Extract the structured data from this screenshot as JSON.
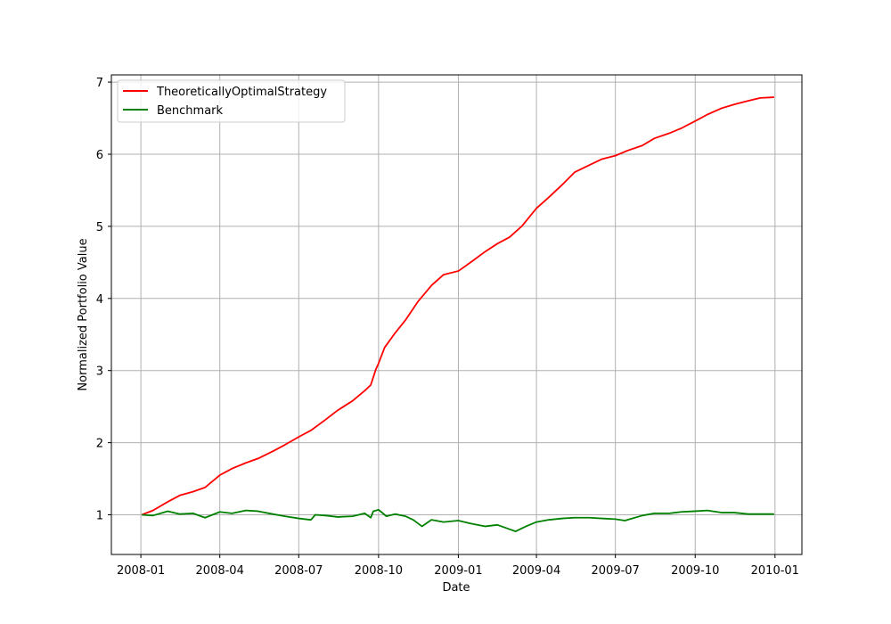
{
  "chart_data": {
    "type": "line",
    "xlabel": "Date",
    "ylabel": "Normalized Portfolio Value",
    "xlim": [
      "2007-11-28",
      "2010-02-01"
    ],
    "ylim": [
      0.45,
      7.1
    ],
    "grid": true,
    "legend": "top-left",
    "x_ticks": [
      "2008-01",
      "2008-04",
      "2008-07",
      "2008-10",
      "2009-01",
      "2009-04",
      "2009-07",
      "2009-10",
      "2010-01"
    ],
    "y_ticks": [
      1,
      2,
      3,
      4,
      5,
      6,
      7
    ],
    "series": [
      {
        "name": "TheoreticallyOptimalStrategy",
        "color": "#ff0000",
        "points": [
          [
            "2008-01-02",
            1.0
          ],
          [
            "2008-01-15",
            1.06
          ],
          [
            "2008-02-01",
            1.18
          ],
          [
            "2008-02-15",
            1.27
          ],
          [
            "2008-03-01",
            1.32
          ],
          [
            "2008-03-15",
            1.38
          ],
          [
            "2008-04-01",
            1.55
          ],
          [
            "2008-04-15",
            1.64
          ],
          [
            "2008-05-01",
            1.72
          ],
          [
            "2008-05-15",
            1.78
          ],
          [
            "2008-06-01",
            1.88
          ],
          [
            "2008-06-15",
            1.97
          ],
          [
            "2008-07-01",
            2.08
          ],
          [
            "2008-07-15",
            2.17
          ],
          [
            "2008-08-01",
            2.32
          ],
          [
            "2008-08-15",
            2.45
          ],
          [
            "2008-09-01",
            2.58
          ],
          [
            "2008-09-15",
            2.72
          ],
          [
            "2008-09-22",
            2.8
          ],
          [
            "2008-09-28",
            3.02
          ],
          [
            "2008-10-01",
            3.1
          ],
          [
            "2008-10-08",
            3.32
          ],
          [
            "2008-10-20",
            3.52
          ],
          [
            "2008-11-01",
            3.7
          ],
          [
            "2008-11-15",
            3.95
          ],
          [
            "2008-12-01",
            4.18
          ],
          [
            "2008-12-15",
            4.33
          ],
          [
            "2009-01-01",
            4.38
          ],
          [
            "2009-01-15",
            4.5
          ],
          [
            "2009-02-01",
            4.65
          ],
          [
            "2009-02-15",
            4.76
          ],
          [
            "2009-03-01",
            4.85
          ],
          [
            "2009-03-15",
            5.0
          ],
          [
            "2009-04-01",
            5.25
          ],
          [
            "2009-04-15",
            5.4
          ],
          [
            "2009-05-01",
            5.58
          ],
          [
            "2009-05-15",
            5.75
          ],
          [
            "2009-06-01",
            5.85
          ],
          [
            "2009-06-15",
            5.93
          ],
          [
            "2009-07-01",
            5.98
          ],
          [
            "2009-07-15",
            6.05
          ],
          [
            "2009-08-01",
            6.12
          ],
          [
            "2009-08-15",
            6.22
          ],
          [
            "2009-09-01",
            6.29
          ],
          [
            "2009-09-15",
            6.36
          ],
          [
            "2009-10-01",
            6.46
          ],
          [
            "2009-10-15",
            6.55
          ],
          [
            "2009-11-01",
            6.64
          ],
          [
            "2009-11-15",
            6.69
          ],
          [
            "2009-12-01",
            6.74
          ],
          [
            "2009-12-15",
            6.78
          ],
          [
            "2009-12-31",
            6.79
          ]
        ]
      },
      {
        "name": "Benchmark",
        "color": "#008000",
        "points": [
          [
            "2008-01-02",
            1.0
          ],
          [
            "2008-01-15",
            0.99
          ],
          [
            "2008-02-01",
            1.05
          ],
          [
            "2008-02-15",
            1.01
          ],
          [
            "2008-03-01",
            1.02
          ],
          [
            "2008-03-15",
            0.96
          ],
          [
            "2008-04-01",
            1.04
          ],
          [
            "2008-04-15",
            1.02
          ],
          [
            "2008-05-01",
            1.06
          ],
          [
            "2008-05-15",
            1.05
          ],
          [
            "2008-06-01",
            1.01
          ],
          [
            "2008-06-15",
            0.98
          ],
          [
            "2008-07-01",
            0.95
          ],
          [
            "2008-07-15",
            0.93
          ],
          [
            "2008-07-20",
            1.0
          ],
          [
            "2008-08-01",
            0.99
          ],
          [
            "2008-08-15",
            0.97
          ],
          [
            "2008-09-01",
            0.98
          ],
          [
            "2008-09-15",
            1.02
          ],
          [
            "2008-09-22",
            0.96
          ],
          [
            "2008-09-25",
            1.05
          ],
          [
            "2008-10-01",
            1.07
          ],
          [
            "2008-10-10",
            0.98
          ],
          [
            "2008-10-20",
            1.01
          ],
          [
            "2008-11-01",
            0.98
          ],
          [
            "2008-11-10",
            0.93
          ],
          [
            "2008-11-20",
            0.84
          ],
          [
            "2008-12-01",
            0.93
          ],
          [
            "2008-12-15",
            0.9
          ],
          [
            "2009-01-01",
            0.92
          ],
          [
            "2009-01-15",
            0.88
          ],
          [
            "2009-02-01",
            0.84
          ],
          [
            "2009-02-15",
            0.86
          ],
          [
            "2009-03-01",
            0.8
          ],
          [
            "2009-03-08",
            0.77
          ],
          [
            "2009-03-20",
            0.84
          ],
          [
            "2009-04-01",
            0.9
          ],
          [
            "2009-04-15",
            0.93
          ],
          [
            "2009-05-01",
            0.95
          ],
          [
            "2009-05-15",
            0.96
          ],
          [
            "2009-06-01",
            0.96
          ],
          [
            "2009-06-15",
            0.95
          ],
          [
            "2009-07-01",
            0.94
          ],
          [
            "2009-07-12",
            0.92
          ],
          [
            "2009-08-01",
            0.99
          ],
          [
            "2009-08-15",
            1.02
          ],
          [
            "2009-09-01",
            1.02
          ],
          [
            "2009-09-15",
            1.04
          ],
          [
            "2009-10-01",
            1.05
          ],
          [
            "2009-10-15",
            1.06
          ],
          [
            "2009-11-01",
            1.03
          ],
          [
            "2009-11-15",
            1.03
          ],
          [
            "2009-12-01",
            1.01
          ],
          [
            "2009-12-15",
            1.01
          ],
          [
            "2009-12-31",
            1.01
          ]
        ]
      }
    ]
  }
}
